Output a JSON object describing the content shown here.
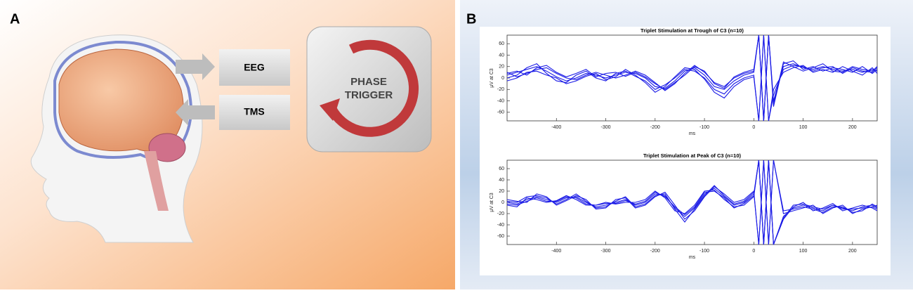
{
  "diagram": {
    "panel_a": {
      "label": "A",
      "eeg": "EEG",
      "tms": "TMS",
      "trigger_line1": "PHASE",
      "trigger_line2": "TRIGGER"
    },
    "panel_b": {
      "label": "B"
    }
  },
  "chart_data": [
    {
      "type": "line",
      "title": "Triplet Stimulation at Trough of C3 (n=10)",
      "x_label": "ms",
      "y_label": "µV at C3",
      "x": [
        -500,
        -480,
        -460,
        -440,
        -420,
        -400,
        -380,
        -360,
        -340,
        -320,
        -300,
        -280,
        -260,
        -240,
        -220,
        -200,
        -180,
        -160,
        -140,
        -120,
        -100,
        -80,
        -60,
        -40,
        -20,
        0,
        10,
        20,
        30,
        40,
        60,
        80,
        100,
        120,
        140,
        160,
        180,
        200,
        220,
        240,
        250
      ],
      "xlim": [
        -500,
        250
      ],
      "xticks": [
        -400,
        -300,
        -200,
        -100,
        0,
        100,
        200
      ],
      "ylim": [
        -75,
        75
      ],
      "yticks": [
        -60,
        -40,
        -20,
        0,
        20,
        40,
        60
      ],
      "series": [
        {
          "color": "#1a1ae6",
          "values": [
            5,
            10,
            15,
            20,
            12,
            2,
            -5,
            0,
            8,
            5,
            0,
            5,
            10,
            8,
            0,
            -15,
            -18,
            -5,
            12,
            18,
            5,
            -15,
            -20,
            -5,
            5,
            10,
            75,
            -75,
            75,
            -40,
            20,
            25,
            18,
            15,
            20,
            15,
            12,
            15,
            10,
            15,
            12
          ]
        },
        {
          "color": "#1a1ae6",
          "values": [
            0,
            5,
            18,
            25,
            8,
            -5,
            -8,
            5,
            12,
            0,
            -5,
            8,
            12,
            3,
            -5,
            -20,
            -12,
            0,
            15,
            12,
            0,
            -20,
            -28,
            -10,
            0,
            5,
            -75,
            75,
            -75,
            -30,
            15,
            22,
            20,
            12,
            18,
            20,
            8,
            18,
            12,
            10,
            18
          ]
        },
        {
          "color": "#1a1ae6",
          "values": [
            10,
            2,
            8,
            15,
            18,
            8,
            0,
            -3,
            5,
            10,
            5,
            0,
            5,
            12,
            5,
            -8,
            -22,
            -10,
            8,
            22,
            10,
            -8,
            -15,
            0,
            8,
            12,
            75,
            -75,
            75,
            -50,
            25,
            30,
            15,
            20,
            12,
            18,
            15,
            10,
            20,
            8,
            15
          ]
        },
        {
          "color": "#1a1ae6",
          "values": [
            -5,
            0,
            10,
            12,
            5,
            0,
            -10,
            -5,
            3,
            8,
            -3,
            2,
            15,
            5,
            -8,
            -25,
            -15,
            2,
            18,
            15,
            -2,
            -25,
            -35,
            -15,
            -3,
            2,
            -75,
            75,
            -75,
            -20,
            10,
            18,
            22,
            10,
            15,
            10,
            20,
            12,
            5,
            18,
            8
          ]
        },
        {
          "color": "#1a1ae6",
          "values": [
            8,
            12,
            5,
            18,
            22,
            10,
            2,
            8,
            15,
            2,
            8,
            10,
            3,
            10,
            2,
            -10,
            -20,
            -8,
            5,
            20,
            12,
            -10,
            -18,
            2,
            10,
            15,
            75,
            -75,
            75,
            -45,
            28,
            20,
            12,
            18,
            25,
            12,
            10,
            20,
            15,
            12,
            20
          ]
        }
      ]
    },
    {
      "type": "line",
      "title": "Triplet Stimulation at Peak of C3 (n=10)",
      "x_label": "ms",
      "y_label": "µV at C3",
      "x": [
        -500,
        -480,
        -460,
        -440,
        -420,
        -400,
        -380,
        -360,
        -340,
        -320,
        -300,
        -280,
        -260,
        -240,
        -220,
        -200,
        -180,
        -160,
        -140,
        -120,
        -100,
        -80,
        -60,
        -40,
        -20,
        0,
        10,
        20,
        30,
        40,
        60,
        80,
        100,
        120,
        140,
        160,
        180,
        200,
        220,
        240,
        250
      ],
      "xlim": [
        -500,
        250
      ],
      "xticks": [
        -400,
        -300,
        -200,
        -100,
        0,
        100,
        200
      ],
      "ylim": [
        -75,
        75
      ],
      "yticks": [
        -60,
        -40,
        -20,
        0,
        20,
        40,
        60
      ],
      "series": [
        {
          "color": "#1a1ae6",
          "values": [
            0,
            -3,
            5,
            10,
            5,
            0,
            8,
            10,
            0,
            -8,
            -5,
            0,
            5,
            -5,
            0,
            15,
            12,
            -10,
            -25,
            -10,
            15,
            25,
            10,
            -5,
            0,
            15,
            75,
            -75,
            75,
            -75,
            -25,
            -10,
            -5,
            -10,
            -15,
            -5,
            -10,
            -15,
            -8,
            -5,
            -10
          ]
        },
        {
          "color": "#1a1ae6",
          "values": [
            5,
            2,
            0,
            15,
            10,
            -5,
            3,
            12,
            5,
            -12,
            -10,
            5,
            8,
            -10,
            -5,
            10,
            18,
            -5,
            -30,
            -15,
            10,
            28,
            15,
            0,
            5,
            20,
            -75,
            75,
            -75,
            75,
            -20,
            -15,
            -10,
            -5,
            -20,
            -10,
            -5,
            -20,
            -12,
            -8,
            -5
          ]
        },
        {
          "color": "#1a1ae6",
          "values": [
            -5,
            -8,
            8,
            5,
            0,
            3,
            12,
            5,
            -5,
            -5,
            0,
            -3,
            0,
            0,
            5,
            20,
            8,
            -15,
            -20,
            -5,
            20,
            22,
            5,
            -8,
            -5,
            10,
            75,
            -75,
            75,
            -75,
            -30,
            -8,
            0,
            -15,
            -10,
            -2,
            -15,
            -10,
            -5,
            -10,
            -15
          ]
        },
        {
          "color": "#1a1ae6",
          "values": [
            2,
            0,
            10,
            12,
            8,
            -3,
            5,
            15,
            2,
            -10,
            -8,
            2,
            10,
            -8,
            -3,
            12,
            15,
            -12,
            -35,
            -12,
            12,
            30,
            12,
            -3,
            2,
            18,
            -75,
            75,
            -75,
            75,
            -15,
            -12,
            -8,
            -12,
            -18,
            -8,
            -8,
            -18,
            -15,
            -3,
            -8
          ]
        },
        {
          "color": "#1a1ae6",
          "values": [
            -3,
            -5,
            2,
            8,
            2,
            2,
            10,
            8,
            -3,
            -5,
            -2,
            -2,
            3,
            -3,
            2,
            18,
            10,
            -8,
            -22,
            -8,
            18,
            20,
            8,
            -10,
            -2,
            12,
            75,
            -75,
            75,
            -75,
            -28,
            -5,
            -3,
            -8,
            -12,
            -5,
            -12,
            -12,
            -10,
            -8,
            -12
          ]
        }
      ]
    }
  ]
}
